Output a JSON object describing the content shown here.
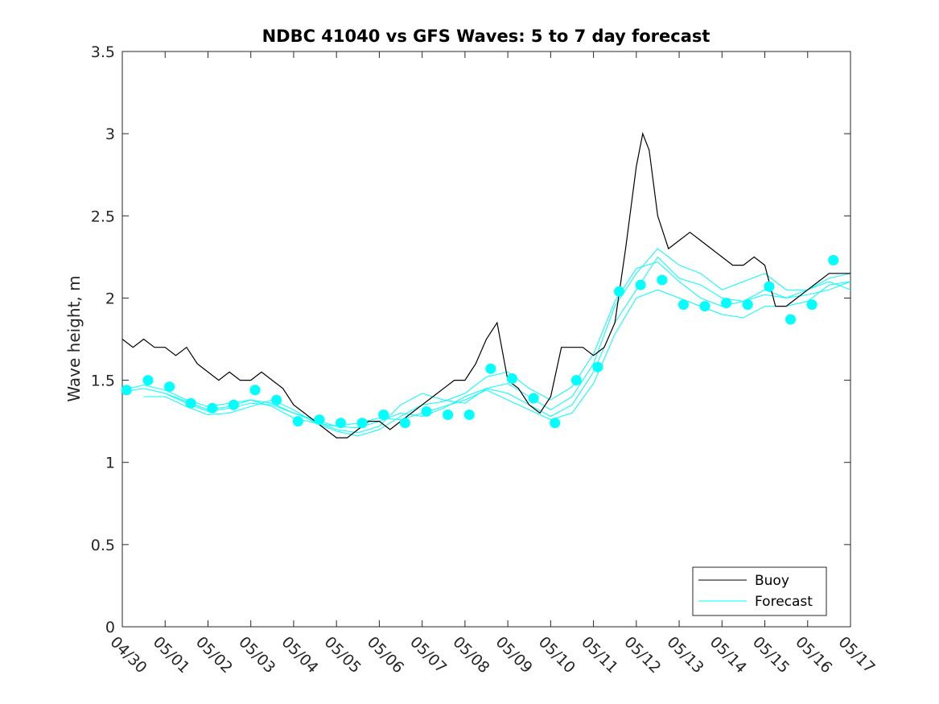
{
  "chart_data": {
    "type": "line",
    "title": "NDBC 41040 vs GFS Waves: 5 to 7 day forecast",
    "ylabel": "Wave height, m",
    "xlabel": "",
    "ylim": [
      0,
      3.5
    ],
    "yticks": [
      "0",
      "0.5",
      "1",
      "1.5",
      "2",
      "2.5",
      "3",
      "3.5"
    ],
    "xlim": [
      0,
      17
    ],
    "xticks": [
      "04/30",
      "05/01",
      "05/02",
      "05/03",
      "05/04",
      "05/05",
      "05/06",
      "05/07",
      "05/08",
      "05/09",
      "05/10",
      "05/11",
      "05/12",
      "05/13",
      "05/14",
      "05/15",
      "05/16",
      "05/17"
    ],
    "legend_position": "bottom-right",
    "colors": {
      "buoy": "#000000",
      "forecast": "#00ffff"
    },
    "series": [
      {
        "name": "Buoy",
        "style": "line",
        "x": [
          0,
          0.25,
          0.5,
          0.75,
          1,
          1.25,
          1.5,
          1.75,
          2,
          2.25,
          2.5,
          2.75,
          3,
          3.25,
          3.5,
          3.75,
          4,
          4.25,
          4.5,
          4.75,
          5,
          5.25,
          5.5,
          5.75,
          6,
          6.25,
          6.5,
          6.75,
          7,
          7.25,
          7.5,
          7.75,
          8,
          8.25,
          8.5,
          8.75,
          9,
          9.25,
          9.5,
          9.75,
          10,
          10.25,
          10.5,
          10.75,
          11,
          11.25,
          11.5,
          11.75,
          12,
          12.15,
          12.3,
          12.5,
          12.75,
          13,
          13.25,
          13.5,
          13.75,
          14,
          14.25,
          14.5,
          14.75,
          15,
          15.25,
          15.5,
          15.75,
          16,
          16.25,
          16.5,
          16.75,
          17
        ],
        "y": [
          1.75,
          1.7,
          1.75,
          1.7,
          1.7,
          1.65,
          1.7,
          1.6,
          1.55,
          1.5,
          1.55,
          1.5,
          1.5,
          1.55,
          1.5,
          1.45,
          1.35,
          1.3,
          1.25,
          1.2,
          1.15,
          1.15,
          1.2,
          1.25,
          1.25,
          1.2,
          1.25,
          1.3,
          1.35,
          1.4,
          1.45,
          1.5,
          1.5,
          1.6,
          1.75,
          1.85,
          1.5,
          1.45,
          1.35,
          1.3,
          1.4,
          1.7,
          1.7,
          1.7,
          1.65,
          1.7,
          1.85,
          2.3,
          2.8,
          3.0,
          2.9,
          2.5,
          2.3,
          2.35,
          2.4,
          2.35,
          2.3,
          2.25,
          2.2,
          2.2,
          2.25,
          2.2,
          1.95,
          1.95,
          2.0,
          2.05,
          2.1,
          2.15,
          2.15,
          2.15
        ]
      },
      {
        "name": "Forecast",
        "style": "markers",
        "x": [
          0.1,
          0.6,
          1.1,
          1.6,
          2.1,
          2.6,
          3.1,
          3.6,
          4.1,
          4.6,
          5.1,
          5.6,
          6.1,
          6.6,
          7.1,
          7.6,
          8.1,
          8.6,
          9.1,
          9.6,
          10.1,
          10.6,
          11.1,
          11.6,
          12.1,
          12.6,
          13.1,
          13.6,
          14.1,
          14.6,
          15.1,
          15.6,
          16.1,
          16.6
        ],
        "y": [
          1.44,
          1.5,
          1.46,
          1.36,
          1.33,
          1.35,
          1.44,
          1.38,
          1.25,
          1.26,
          1.24,
          1.24,
          1.29,
          1.24,
          1.31,
          1.29,
          1.29,
          1.57,
          1.51,
          1.39,
          1.24,
          1.5,
          1.58,
          2.04,
          2.08,
          2.11,
          1.96,
          1.95,
          1.97,
          1.96,
          2.07,
          1.87,
          1.96,
          2.23
        ]
      },
      {
        "name": "",
        "style": "thin-line",
        "x": [
          0,
          0.5,
          1,
          1.5,
          2,
          2.5,
          3,
          3.5,
          4,
          4.5,
          5,
          5.5,
          6,
          6.5,
          7,
          7.5,
          8,
          8.5,
          9,
          9.5,
          10,
          10.5,
          11,
          11.5,
          12,
          12.5,
          13,
          13.5,
          14,
          14.5,
          15,
          15.5,
          16,
          16.5,
          17
        ],
        "y": [
          1.44,
          1.47,
          1.44,
          1.38,
          1.34,
          1.36,
          1.38,
          1.34,
          1.27,
          1.24,
          1.22,
          1.24,
          1.27,
          1.26,
          1.3,
          1.34,
          1.38,
          1.44,
          1.38,
          1.32,
          1.26,
          1.3,
          1.48,
          1.78,
          2.0,
          2.05,
          2.0,
          1.95,
          1.9,
          1.88,
          1.95,
          1.95,
          1.98,
          2.08,
          2.1
        ]
      },
      {
        "name": "",
        "style": "thin-line",
        "x": [
          0,
          0.5,
          1,
          1.5,
          2,
          2.5,
          3,
          3.5,
          4,
          4.5,
          5,
          5.5,
          6,
          6.5,
          7,
          7.5,
          8,
          8.5,
          9,
          9.5,
          10,
          10.5,
          11,
          11.5,
          12,
          12.5,
          13,
          13.5,
          14,
          14.5,
          15,
          15.5,
          16,
          16.5,
          17
        ],
        "y": [
          1.43,
          1.45,
          1.42,
          1.36,
          1.31,
          1.33,
          1.36,
          1.35,
          1.3,
          1.26,
          1.22,
          1.21,
          1.25,
          1.3,
          1.28,
          1.33,
          1.4,
          1.45,
          1.42,
          1.35,
          1.28,
          1.35,
          1.55,
          1.85,
          2.05,
          2.25,
          2.12,
          2.08,
          2.0,
          1.98,
          2.02,
          2.0,
          2.05,
          2.12,
          2.15
        ]
      },
      {
        "name": "",
        "style": "thin-line",
        "x": [
          1,
          1.5,
          2,
          2.5,
          3,
          3.5,
          4,
          4.5,
          5,
          5.5,
          6,
          6.5,
          7,
          7.5,
          8,
          8.5,
          9,
          9.5,
          10,
          10.5,
          11,
          11.5,
          12,
          12.5,
          13,
          13.5,
          14,
          14.5,
          15,
          15.5,
          16,
          16.5,
          17
        ],
        "y": [
          1.42,
          1.37,
          1.32,
          1.34,
          1.38,
          1.36,
          1.3,
          1.25,
          1.2,
          1.18,
          1.22,
          1.35,
          1.42,
          1.38,
          1.36,
          1.45,
          1.48,
          1.4,
          1.32,
          1.4,
          1.6,
          1.95,
          2.15,
          2.3,
          2.2,
          2.15,
          2.05,
          2.1,
          2.15,
          2.05,
          2.05,
          2.1,
          2.05
        ]
      },
      {
        "name": "",
        "style": "thin-line",
        "x": [
          0.5,
          1,
          1.5,
          2,
          2.5,
          3,
          3.5,
          4,
          4.5,
          5,
          5.5,
          6,
          6.5,
          7,
          7.5,
          8,
          8.5,
          9,
          9.5,
          10,
          10.5,
          11,
          11.5,
          12,
          12.5,
          13,
          13.5,
          14,
          14.5,
          15,
          15.5,
          16,
          16.5,
          17
        ],
        "y": [
          1.4,
          1.4,
          1.34,
          1.29,
          1.3,
          1.34,
          1.38,
          1.32,
          1.24,
          1.19,
          1.16,
          1.2,
          1.28,
          1.35,
          1.37,
          1.42,
          1.52,
          1.55,
          1.45,
          1.38,
          1.46,
          1.66,
          1.98,
          2.18,
          2.22,
          2.1,
          2.0,
          1.95,
          1.98,
          2.05,
          2.0,
          2.02,
          2.05,
          2.1
        ]
      }
    ]
  }
}
